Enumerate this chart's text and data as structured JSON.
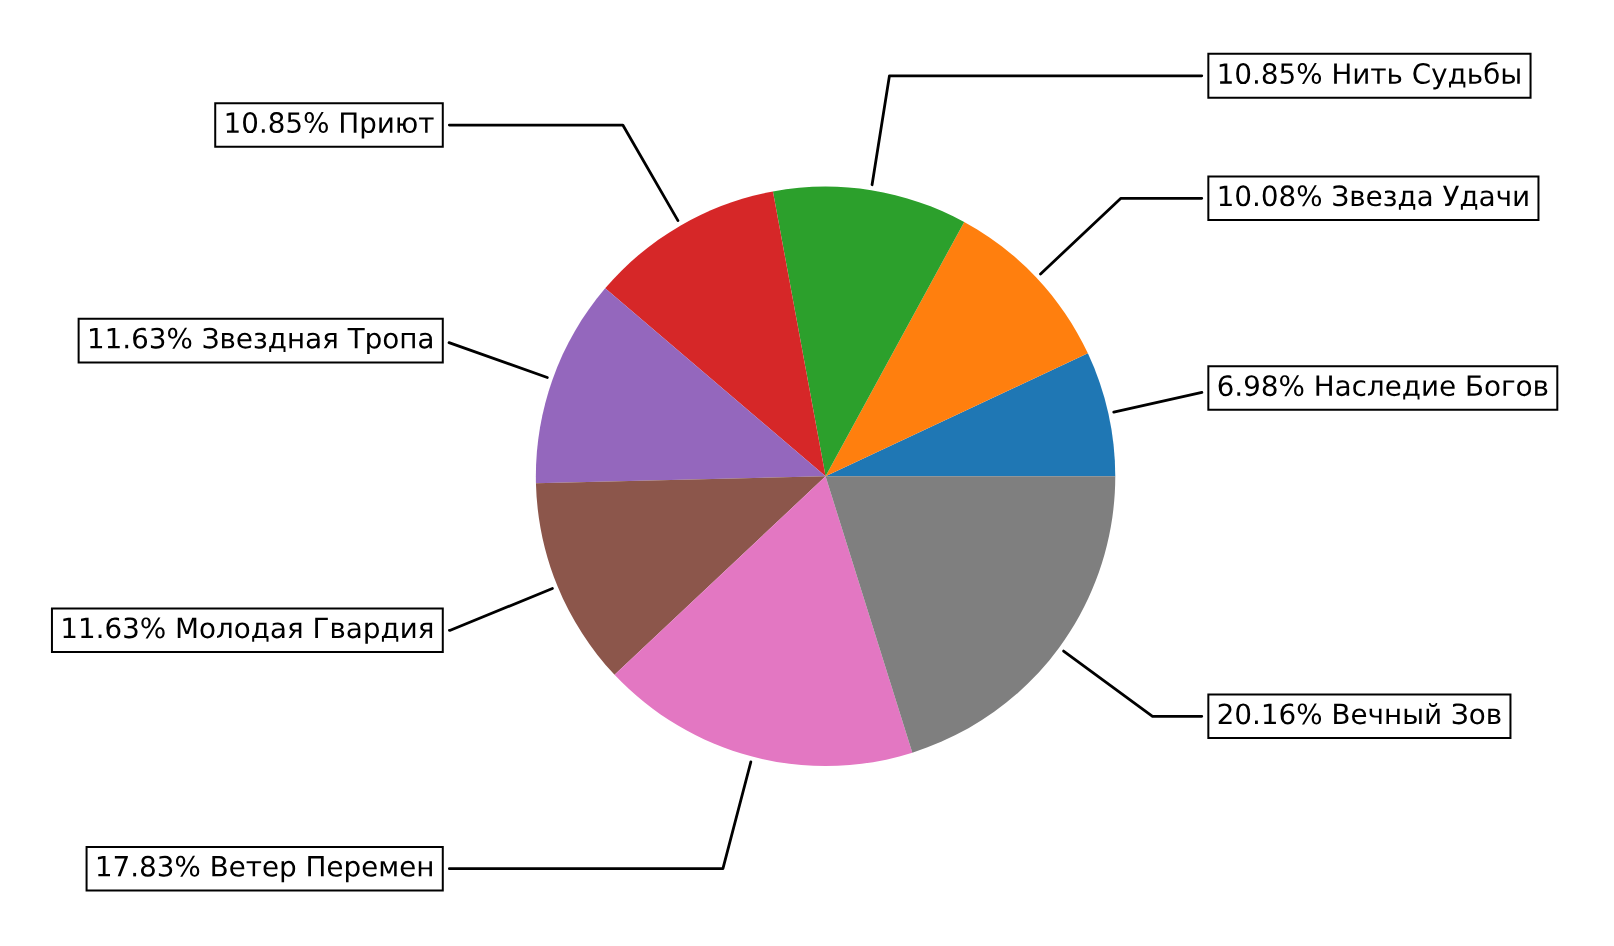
{
  "chart_data": {
    "type": "pie",
    "categories": [
      "Наследие Богов",
      "Звезда Удачи",
      "Нить Судьбы",
      "Приют",
      "Звездная Тропа",
      "Молодая Гвардия",
      "Ветер Перемен",
      "Вечный Зов"
    ],
    "values": [
      6.98,
      10.08,
      10.85,
      10.85,
      11.63,
      11.63,
      17.83,
      20.16
    ],
    "value_labels": [
      "6.98%",
      "10.08%",
      "10.85%",
      "10.85%",
      "11.63%",
      "11.63%",
      "17.83%",
      "20.16%"
    ],
    "colors": [
      "#1f77b4",
      "#ff7f0e",
      "#2ca02c",
      "#d62728",
      "#9467bd",
      "#8c564b",
      "#e377c2",
      "#7f7f7f"
    ]
  }
}
